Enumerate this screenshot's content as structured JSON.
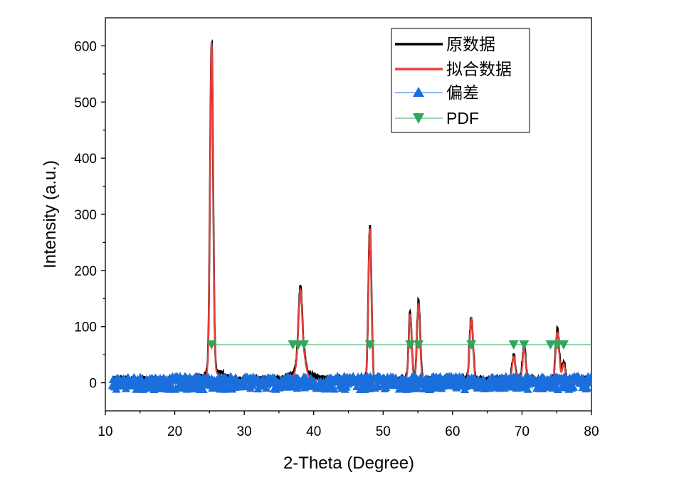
{
  "chart_data": {
    "type": "line",
    "title": "",
    "xlabel": "2-Theta (Degree)",
    "ylabel": "Intensity (a.u.)",
    "xlim": [
      10,
      80
    ],
    "ylim": [
      -50,
      650
    ],
    "x_ticks": [
      10,
      20,
      30,
      40,
      50,
      60,
      70,
      80
    ],
    "y_ticks": [
      0,
      100,
      200,
      300,
      400,
      500,
      600
    ],
    "grid": false,
    "legend_position": "top-right",
    "colors": {
      "raw": "#000000",
      "fit": "#e8403c",
      "residual": "#1a6fdc",
      "pdf": "#2ea85c"
    },
    "peaks": [
      {
        "x": 25.3,
        "y": 590,
        "w": 0.22
      },
      {
        "x": 37.8,
        "y": 28,
        "w": 0.3
      },
      {
        "x": 38.1,
        "y": 128,
        "w": 0.25
      },
      {
        "x": 38.6,
        "y": 30,
        "w": 0.3
      },
      {
        "x": 48.1,
        "y": 273,
        "w": 0.22
      },
      {
        "x": 53.9,
        "y": 120,
        "w": 0.22
      },
      {
        "x": 55.1,
        "y": 140,
        "w": 0.22
      },
      {
        "x": 62.7,
        "y": 112,
        "w": 0.25
      },
      {
        "x": 68.8,
        "y": 45,
        "w": 0.22
      },
      {
        "x": 70.3,
        "y": 60,
        "w": 0.22
      },
      {
        "x": 75.1,
        "y": 88,
        "w": 0.25
      },
      {
        "x": 76.0,
        "y": 32,
        "w": 0.22
      }
    ],
    "background_bumps": [
      {
        "x": 25.6,
        "y": 15,
        "w": 1.2
      },
      {
        "x": 38.0,
        "y": 12,
        "w": 1.5
      }
    ],
    "series": [
      {
        "name": "原数据",
        "style": "line",
        "color": "#000000"
      },
      {
        "name": "拟合数据",
        "style": "line",
        "color": "#e8403c"
      },
      {
        "name": "偏差",
        "style": "line+up-triangle",
        "color": "#1a6fdc",
        "residual_amplitude": 12
      },
      {
        "name": "PDF",
        "style": "line+down-triangle",
        "color": "#2ea85c",
        "baseline_y": 68,
        "x": [
          25.3,
          37.0,
          37.8,
          38.6,
          48.1,
          53.9,
          55.1,
          62.7,
          68.8,
          70.3,
          74.1,
          75.1,
          76.0
        ]
      }
    ]
  }
}
